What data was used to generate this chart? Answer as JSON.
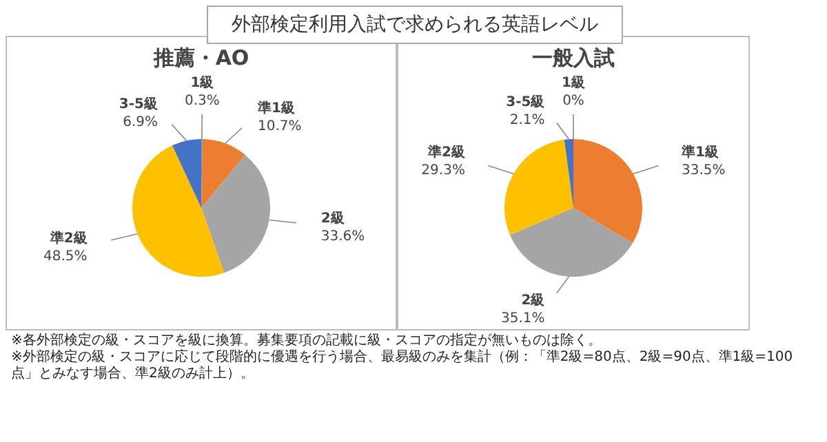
{
  "chart_data": [
    {
      "type": "pie",
      "title": "推薦・AO",
      "annotations": [
        "外部検定利用入試で求められる英語レベル"
      ],
      "categories": [
        "1級",
        "準1級",
        "2級",
        "準2級",
        "3-5級"
      ],
      "values": [
        0.3,
        10.7,
        33.6,
        48.5,
        6.9
      ],
      "value_labels": [
        "0.3%",
        "10.7%",
        "33.6%",
        "48.5%",
        "6.9%"
      ],
      "colors": [
        "#5b9bd5",
        "#ed7d31",
        "#a5a5a5",
        "#ffc000",
        "#4472c4"
      ]
    },
    {
      "type": "pie",
      "title": "一般入試",
      "annotations": [
        "※各外部検定の級・スコアを級に換算。募集要項の記載に級・スコアの指定が無いものは除く。",
        "※外部検定の級・スコアに応じて段階的に優遇を行う場合、最易級のみを集計（例：「準2級=80点、2級=90点、準1級=100点」とみなす場合、準2級のみ計上）。"
      ],
      "categories": [
        "1級",
        "準1級",
        "2級",
        "準2級",
        "3-5級"
      ],
      "values": [
        0,
        33.5,
        35.1,
        29.3,
        2.1
      ],
      "value_labels": [
        "0%",
        "33.5%",
        "35.1%",
        "29.3%",
        "2.1%"
      ],
      "colors": [
        "#5b9bd5",
        "#ed7d31",
        "#a5a5a5",
        "#ffc000",
        "#4472c4"
      ]
    }
  ]
}
